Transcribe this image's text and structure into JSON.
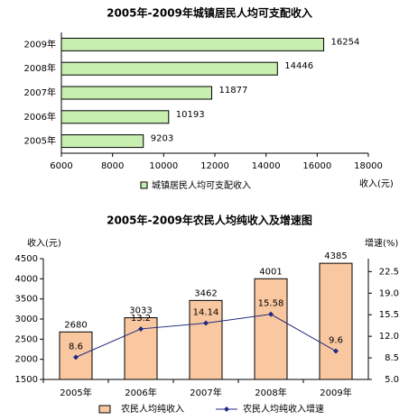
{
  "chart_data": [
    {
      "type": "hbar",
      "title": "2005年-2009年城镇居民人均可支配收入",
      "categories": [
        "2009年",
        "2008年",
        "2007年",
        "2006年",
        "2005年"
      ],
      "series": [
        {
          "name": "城镇居民人均可支配收入",
          "color": "#c6efb0",
          "values": [
            16254,
            14446,
            11877,
            10193,
            9203
          ]
        }
      ],
      "xlabel": "收入(元)",
      "xlim": [
        6000,
        18000
      ],
      "xticks": [
        6000,
        8000,
        10000,
        12000,
        14000,
        16000,
        18000
      ]
    },
    {
      "type": "combo",
      "title": "2005年-2009年农民人均纯收入及增速图",
      "categories": [
        "2005年",
        "2006年",
        "2007年",
        "2008年",
        "2009年"
      ],
      "series": [
        {
          "name": "农民人均纯收入",
          "type": "bar",
          "color": "#f9c8a0",
          "values": [
            2680,
            3033,
            3462,
            4001,
            4385
          ]
        },
        {
          "name": "农民人均纯收入增速",
          "type": "line",
          "axis": "y2",
          "color": "#1f2a80",
          "values": [
            8.6,
            13.2,
            14.14,
            15.58,
            9.6
          ]
        }
      ],
      "ylabel": "收入(元)",
      "y2label": "增速(%)",
      "ylim": [
        1500,
        4500
      ],
      "yticks": [
        1500,
        2000,
        2500,
        3000,
        3500,
        4000,
        4500
      ],
      "y2lim": [
        5,
        24.6
      ],
      "y2ticks": [
        {
          "value": 5,
          "label": "5.0"
        },
        {
          "value": 8.5,
          "label": "8.5"
        },
        {
          "value": 12,
          "label": "12.0"
        },
        {
          "value": 15.5,
          "label": "15.5"
        },
        {
          "value": 19,
          "label": "19.0"
        },
        {
          "value": 22.5,
          "label": "22.5"
        }
      ]
    }
  ]
}
